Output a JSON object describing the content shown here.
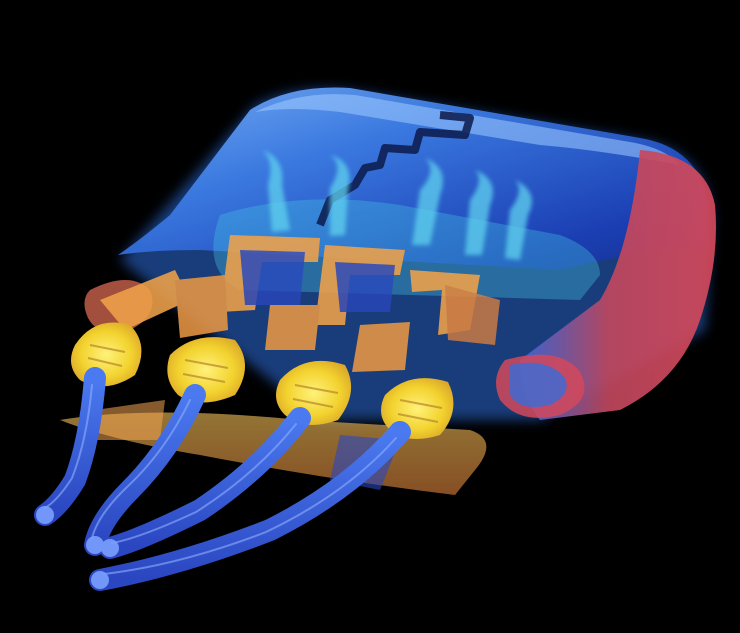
{
  "image": {
    "subject": "",
    "palette": {
      "background": "#000000",
      "housing_blue": "#2f6fe0",
      "housing_deep_blue": "#1b3fb8",
      "housing_highlight": "#7fb6ff",
      "cyan_inner": "#46c6e6",
      "contact_orange": "#f0a24a",
      "contact_yellow": "#f6dc3c",
      "end_red": "#d4485a",
      "wire_blue": "#3e63d8"
    },
    "icon_names": [
      "connector-housing",
      "contact-pins",
      "crimp-terminals",
      "wire-bundle"
    ]
  }
}
